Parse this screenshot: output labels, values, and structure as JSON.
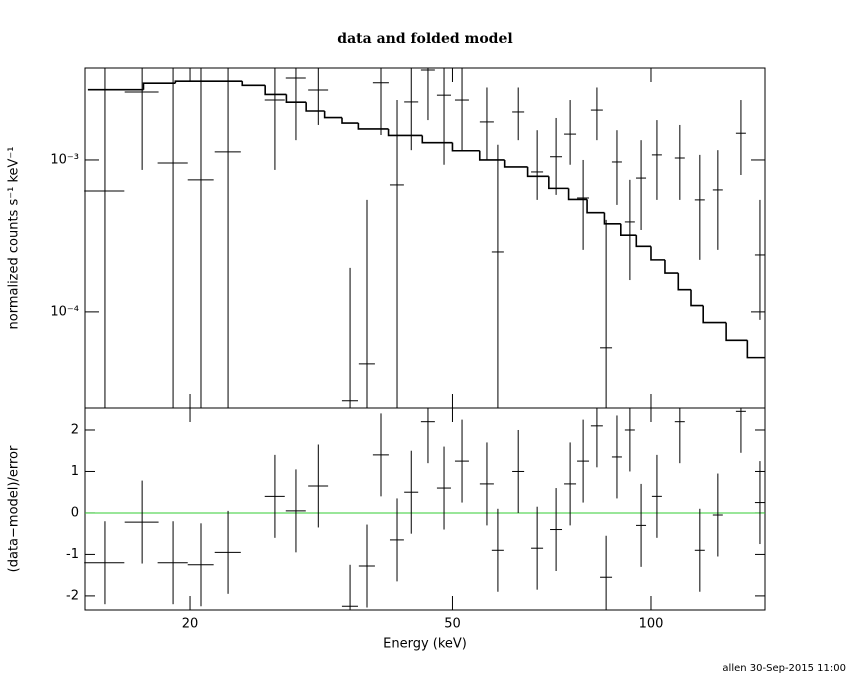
{
  "chart_data": [
    {
      "type": "errorbar",
      "title": "data and folded model",
      "ylabel": "normalized counts s⁻¹ keV⁻¹",
      "xlog": true,
      "ylog": true,
      "xlim": [
        13.86,
        148.9
      ],
      "ylim": [
        2.33e-05,
        0.00403
      ],
      "yticks": [
        {
          "value": 0.001,
          "label": "10⁻³"
        },
        {
          "value": 0.0001,
          "label": "10⁻⁴"
        }
      ],
      "color": "#000000",
      "x": [
        14.86,
        16.92,
        18.85,
        20.78,
        22.84,
        26.9,
        28.95,
        31.3,
        34.97,
        37.1,
        38.96,
        41.2,
        43.3,
        45.9,
        48.55,
        51.7,
        56.4,
        58.6,
        62.9,
        67.2,
        71.8,
        75.4,
        78.9,
        82.8,
        85.5,
        88.8,
        92.9,
        96.6,
        102.1,
        110.6,
        118.6,
        126.3,
        136.9,
        146.3
      ],
      "xerr": [
        1.04,
        1.0,
        0.99,
        0.94,
        1.04,
        0.94,
        1.01,
        1.09,
        0.98,
        1.04,
        1.09,
        1.0,
        1.06,
        1.12,
        1.19,
        1.26,
        1.38,
        1.23,
        1.32,
        1.41,
        1.5,
        1.58,
        1.65,
        1.73,
        1.79,
        1.55,
        1.62,
        1.69,
        1.78,
        1.93,
        2.07,
        2.2,
        2.39,
        2.55
      ],
      "values": [
        0.000625,
        0.0028,
        0.000955,
        0.00074,
        0.00113,
        0.00248,
        0.00346,
        0.00289,
        2.6e-05,
        4.55e-05,
        0.00322,
        0.000685,
        0.00241,
        0.00391,
        0.00267,
        0.00248,
        0.00178,
        0.000248,
        0.00207,
        0.000834,
        0.00105,
        0.00148,
        0.000562,
        0.00213,
        5.8e-05,
        0.00097,
        0.000391,
        0.00076,
        0.00108,
        0.00103,
        0.000546,
        0.000635,
        0.0015,
        0.000237
      ],
      "lower": [
        0,
        0.00086,
        0,
        0,
        0,
        0.00086,
        0.00135,
        0.0017,
        0,
        0,
        0.00146,
        0,
        0.00116,
        0.00183,
        0.00093,
        0.00116,
        0.001,
        0,
        0.00135,
        0.000546,
        0.000589,
        0.00093,
        0.000256,
        0.00135,
        0,
        0.000506,
        0.000162,
        0.000346,
        0.000546,
        0.000546,
        0.00022,
        0.000256,
        0.000796,
        8.86e-05
      ],
      "upper": [
        0.005,
        0.005,
        0.005,
        0.005,
        0.005,
        0.005,
        0.005,
        0.005,
        0.000195,
        0.000546,
        0.005,
        0.00248,
        0.005,
        0.005,
        0.005,
        0.005,
        0.003,
        0.00126,
        0.003,
        0.00157,
        0.00189,
        0.00248,
        0.001,
        0.003,
        0.000403,
        0.00157,
        0.00074,
        0.00135,
        0.00183,
        0.0017,
        0.00108,
        0.00116,
        0.00248,
        0.000546
      ],
      "model_edges": [
        14,
        17,
        19,
        24,
        26,
        28,
        30,
        32,
        34,
        36,
        40,
        45,
        50,
        55,
        60,
        65,
        70,
        75,
        80,
        85,
        90,
        95,
        100,
        105,
        110,
        115,
        120,
        130,
        140,
        149
      ],
      "model_values": [
        0.0029,
        0.0032,
        0.0033,
        0.0031,
        0.0027,
        0.0024,
        0.0021,
        0.0019,
        0.00175,
        0.0016,
        0.00145,
        0.0013,
        0.00115,
        0.001,
        0.0009,
        0.00078,
        0.00065,
        0.00055,
        0.00045,
        0.00038,
        0.00032,
        0.00027,
        0.00022,
        0.00018,
        0.00014,
        0.00011,
        8.5e-05,
        6.5e-05,
        5e-05
      ]
    },
    {
      "type": "residual",
      "ylabel": "(data−model)/error",
      "xlabel": "Energy (keV)",
      "xlog": true,
      "xlim": [
        13.86,
        148.9
      ],
      "xticks": [
        20,
        50,
        100
      ],
      "ylim": [
        -2.34,
        2.53
      ],
      "yticks": [
        -2,
        -1,
        0,
        1,
        2
      ],
      "zero_line": 0,
      "zero_color": "#33cc33",
      "color": "#000000",
      "values": [
        -1.2,
        -0.22,
        -1.2,
        -1.25,
        -0.95,
        0.4,
        0.05,
        0.65,
        -2.25,
        -1.28,
        1.4,
        -0.65,
        0.5,
        2.2,
        0.6,
        1.25,
        0.7,
        -0.9,
        1.0,
        -0.85,
        -0.4,
        0.7,
        1.25,
        2.1,
        -1.55,
        1.35,
        2.0,
        -0.3,
        0.4,
        2.2,
        -0.9,
        -0.05,
        2.45,
        0.25
      ],
      "errors": [
        1,
        1,
        1,
        1,
        1,
        1,
        1,
        1,
        1,
        1,
        1,
        1,
        1,
        1,
        1,
        1,
        1,
        1,
        1,
        1,
        1,
        1,
        1,
        1,
        1,
        1,
        1,
        1,
        1,
        1,
        1,
        1,
        1,
        1
      ]
    }
  ],
  "footer": "allen 30-Sep-2015 11:00"
}
